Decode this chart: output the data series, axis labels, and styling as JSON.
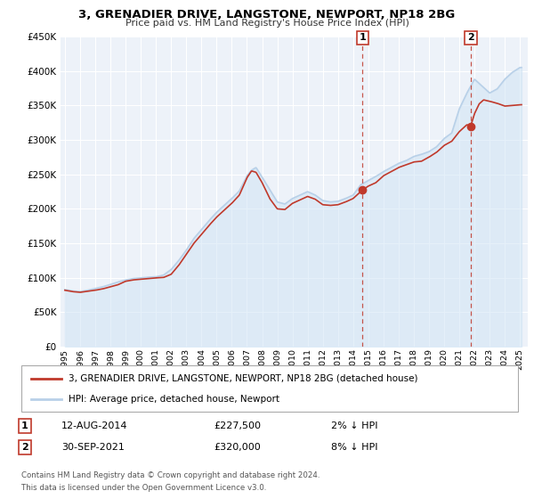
{
  "title": "3, GRENADIER DRIVE, LANGSTONE, NEWPORT, NP18 2BG",
  "subtitle": "Price paid vs. HM Land Registry's House Price Index (HPI)",
  "ylim": [
    0,
    450000
  ],
  "yticks": [
    0,
    50000,
    100000,
    150000,
    200000,
    250000,
    300000,
    350000,
    400000,
    450000
  ],
  "xlim_start": 1994.7,
  "xlim_end": 2025.5,
  "hpi_color": "#b8d0e8",
  "hpi_fill_color": "#d0e4f5",
  "price_color": "#c0392b",
  "marker_color": "#c0392b",
  "background_color": "#edf2f9",
  "grid_color": "#ffffff",
  "legend_label_price": "3, GRENADIER DRIVE, LANGSTONE, NEWPORT, NP18 2BG (detached house)",
  "legend_label_hpi": "HPI: Average price, detached house, Newport",
  "sale1_date": "12-AUG-2014",
  "sale1_price": "£227,500",
  "sale1_hpi": "2% ↓ HPI",
  "sale1_year": 2014.62,
  "sale1_value": 227500,
  "sale2_date": "30-SEP-2021",
  "sale2_price": "£320,000",
  "sale2_hpi": "8% ↓ HPI",
  "sale2_year": 2021.75,
  "sale2_value": 320000,
  "footnote1": "Contains HM Land Registry data © Crown copyright and database right 2024.",
  "footnote2": "This data is licensed under the Open Government Licence v3.0."
}
